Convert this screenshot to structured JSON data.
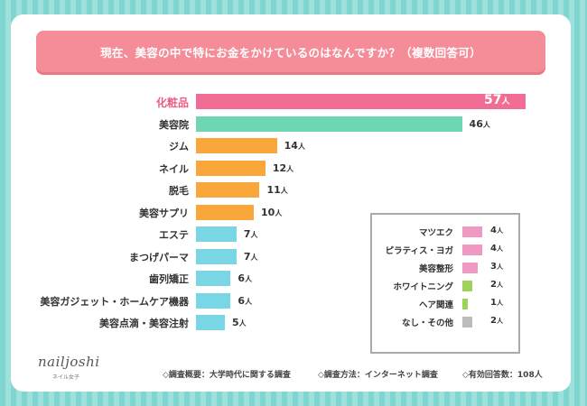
{
  "title": "現在、美容の中で特にお金をかけているのはなんですか？（複数回答可）",
  "unit": "人",
  "colors": {
    "highlight": "#f26d95",
    "mint": "#6fd6b4",
    "orange": "#f9a63a",
    "cyan": "#79d6e4",
    "pink": "#ee98c2",
    "lime": "#9ed35a",
    "gray": "#bcbcbc"
  },
  "chart_data": {
    "type": "bar",
    "orientation": "horizontal",
    "title": "現在、美容の中で特にお金をかけているのはなんですか？（複数回答可）",
    "unit": "人",
    "categories": [
      "化粧品",
      "美容院",
      "ジム",
      "ネイル",
      "脱毛",
      "美容サプリ",
      "エステ",
      "まつげパーマ",
      "歯列矯正",
      "美容ガジェット・ホームケア機器",
      "美容点滴・美容注射"
    ],
    "values": [
      57,
      46,
      14,
      12,
      11,
      10,
      7,
      7,
      6,
      6,
      5
    ],
    "bar_colors": [
      "highlight",
      "mint",
      "orange",
      "orange",
      "orange",
      "orange",
      "cyan",
      "cyan",
      "cyan",
      "cyan",
      "cyan"
    ],
    "legend_items": [
      {
        "label": "マツエク",
        "value": 4,
        "color": "pink"
      },
      {
        "label": "ピラティス・ヨガ",
        "value": 4,
        "color": "pink"
      },
      {
        "label": "美容整形",
        "value": 3,
        "color": "pink"
      },
      {
        "label": "ホワイトニング",
        "value": 2,
        "color": "lime"
      },
      {
        "label": "ヘア関連",
        "value": 1,
        "color": "lime"
      },
      {
        "label": "なし・その他",
        "value": 2,
        "color": "gray"
      }
    ],
    "xlim": [
      0,
      57
    ]
  },
  "logo": {
    "name": "nailjoshi",
    "sub": "ネイル女子"
  },
  "footer": {
    "survey_summary": "◇調査概要：大学時代に関する調査",
    "survey_method": "◇調査方法：インターネット調査",
    "valid_responses": "◇有効回答数：108人"
  }
}
